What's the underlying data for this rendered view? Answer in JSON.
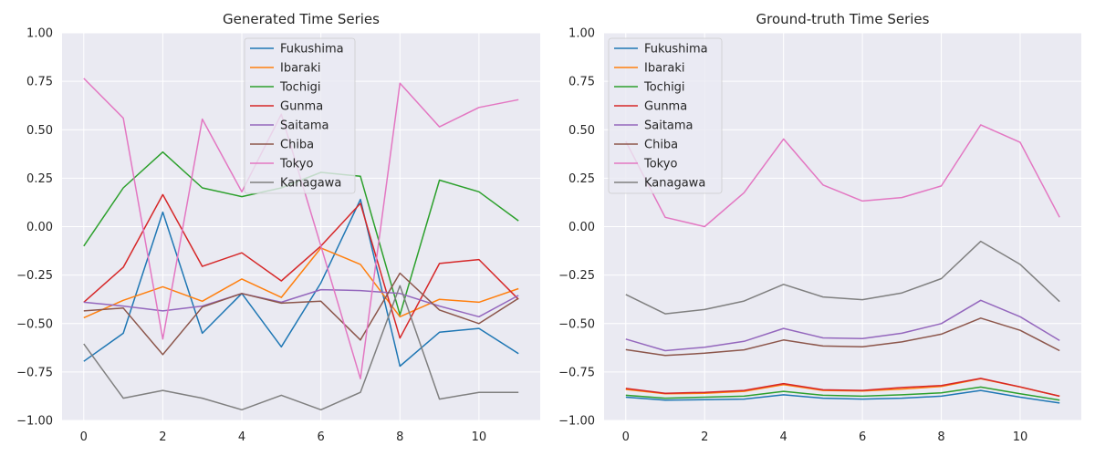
{
  "chart_data": [
    {
      "type": "line",
      "title": "Generated Time Series",
      "xlabel": "",
      "ylabel": "",
      "xlim": [
        -0.55,
        11.55
      ],
      "ylim": [
        -1.0,
        1.0
      ],
      "x_ticks": [
        0,
        2,
        4,
        6,
        8,
        10
      ],
      "y_ticks": [
        -1.0,
        -0.75,
        -0.5,
        -0.25,
        0.0,
        0.25,
        0.5,
        0.75,
        1.0
      ],
      "y_tick_labels": [
        "−1.00",
        "−0.75",
        "−0.50",
        "−0.25",
        "0.00",
        "0.25",
        "0.50",
        "0.75",
        "1.00"
      ],
      "grid": true,
      "legend_position": "top-center",
      "x": [
        0,
        1,
        2,
        3,
        4,
        5,
        6,
        7,
        8,
        9,
        10,
        11
      ],
      "series": [
        {
          "name": "Fukushima",
          "color": "#1f77b4",
          "values": [
            -0.695,
            -0.55,
            0.075,
            -0.55,
            -0.345,
            -0.62,
            -0.29,
            0.14,
            -0.72,
            -0.545,
            -0.525,
            -0.655
          ]
        },
        {
          "name": "Ibaraki",
          "color": "#ff7f0e",
          "values": [
            -0.47,
            -0.38,
            -0.31,
            -0.385,
            -0.27,
            -0.365,
            -0.11,
            -0.195,
            -0.465,
            -0.375,
            -0.39,
            -0.32
          ]
        },
        {
          "name": "Tochigi",
          "color": "#2ca02c",
          "values": [
            -0.1,
            0.2,
            0.385,
            0.2,
            0.155,
            0.2,
            0.28,
            0.26,
            -0.455,
            0.24,
            0.18,
            0.03
          ]
        },
        {
          "name": "Gunma",
          "color": "#d62728",
          "values": [
            -0.39,
            -0.21,
            0.165,
            -0.205,
            -0.135,
            -0.28,
            -0.1,
            0.12,
            -0.575,
            -0.19,
            -0.17,
            -0.375
          ]
        },
        {
          "name": "Saitama",
          "color": "#9467bd",
          "values": [
            -0.39,
            -0.41,
            -0.435,
            -0.41,
            -0.345,
            -0.39,
            -0.325,
            -0.33,
            -0.345,
            -0.41,
            -0.465,
            -0.355
          ]
        },
        {
          "name": "Chiba",
          "color": "#8c564b",
          "values": [
            -0.435,
            -0.42,
            -0.66,
            -0.415,
            -0.345,
            -0.395,
            -0.385,
            -0.585,
            -0.24,
            -0.43,
            -0.5,
            -0.37
          ]
        },
        {
          "name": "Tokyo",
          "color": "#e377c2",
          "values": [
            0.765,
            0.56,
            -0.58,
            0.555,
            0.18,
            0.58,
            -0.1,
            -0.785,
            0.74,
            0.515,
            0.615,
            0.655
          ]
        },
        {
          "name": "Kanagawa",
          "color": "#7f7f7f",
          "values": [
            -0.605,
            -0.885,
            -0.845,
            -0.885,
            -0.945,
            -0.87,
            -0.945,
            -0.855,
            -0.305,
            -0.89,
            -0.855,
            -0.855
          ]
        }
      ]
    },
    {
      "type": "line",
      "title": "Ground-truth Time Series",
      "xlabel": "",
      "ylabel": "",
      "xlim": [
        -0.55,
        11.55
      ],
      "ylim": [
        -1.0,
        1.0
      ],
      "x_ticks": [
        0,
        2,
        4,
        6,
        8,
        10
      ],
      "y_ticks": [
        -1.0,
        -0.75,
        -0.5,
        -0.25,
        0.0,
        0.25,
        0.5,
        0.75,
        1.0
      ],
      "y_tick_labels": [
        "−1.00",
        "−0.75",
        "−0.50",
        "−0.25",
        "0.00",
        "0.25",
        "0.50",
        "0.75",
        "1.00"
      ],
      "grid": true,
      "legend_position": "top-left",
      "x": [
        0,
        1,
        2,
        3,
        4,
        5,
        6,
        7,
        8,
        9,
        10,
        11
      ],
      "series": [
        {
          "name": "Fukushima",
          "color": "#1f77b4",
          "values": [
            -0.88,
            -0.895,
            -0.893,
            -0.89,
            -0.868,
            -0.885,
            -0.89,
            -0.885,
            -0.875,
            -0.845,
            -0.88,
            -0.91
          ]
        },
        {
          "name": "Ibaraki",
          "color": "#ff7f0e",
          "values": [
            -0.84,
            -0.862,
            -0.86,
            -0.85,
            -0.815,
            -0.845,
            -0.848,
            -0.838,
            -0.825,
            -0.785,
            -0.828,
            -0.875
          ]
        },
        {
          "name": "Tochigi",
          "color": "#2ca02c",
          "values": [
            -0.87,
            -0.885,
            -0.88,
            -0.875,
            -0.85,
            -0.87,
            -0.875,
            -0.868,
            -0.858,
            -0.828,
            -0.862,
            -0.895
          ]
        },
        {
          "name": "Gunma",
          "color": "#d62728",
          "values": [
            -0.835,
            -0.86,
            -0.855,
            -0.845,
            -0.81,
            -0.842,
            -0.845,
            -0.83,
            -0.82,
            -0.783,
            -0.827,
            -0.875
          ]
        },
        {
          "name": "Saitama",
          "color": "#9467bd",
          "values": [
            -0.58,
            -0.64,
            -0.622,
            -0.592,
            -0.525,
            -0.574,
            -0.578,
            -0.55,
            -0.5,
            -0.38,
            -0.465,
            -0.588
          ]
        },
        {
          "name": "Chiba",
          "color": "#8c564b",
          "values": [
            -0.635,
            -0.665,
            -0.653,
            -0.636,
            -0.585,
            -0.616,
            -0.62,
            -0.595,
            -0.555,
            -0.472,
            -0.535,
            -0.64
          ]
        },
        {
          "name": "Tokyo",
          "color": "#e377c2",
          "values": [
            0.44,
            0.048,
            0.0,
            0.175,
            0.452,
            0.215,
            0.132,
            0.15,
            0.21,
            0.525,
            0.435,
            0.048
          ]
        },
        {
          "name": "Kanagawa",
          "color": "#7f7f7f",
          "values": [
            -0.35,
            -0.45,
            -0.428,
            -0.384,
            -0.298,
            -0.363,
            -0.377,
            -0.342,
            -0.268,
            -0.076,
            -0.195,
            -0.387
          ]
        }
      ]
    }
  ]
}
